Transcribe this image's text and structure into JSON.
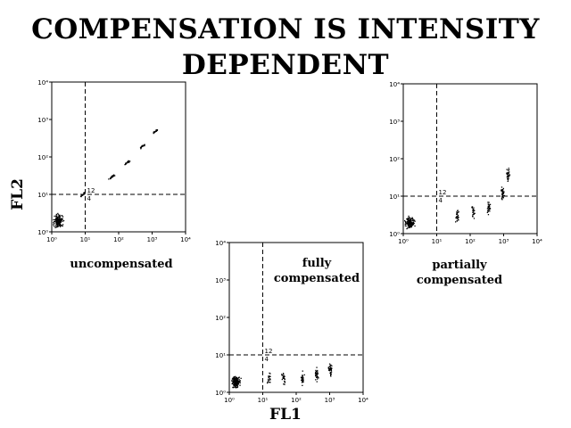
{
  "title": {
    "line1": "COMPENSATION IS INTENSITY",
    "line2": "DEPENDENT"
  },
  "axes": {
    "ylabel": "FL2",
    "xlabel": "FL1"
  },
  "captions": {
    "uncompensated": "uncompensated",
    "fully": "fully compensated",
    "partially": "partially compensated"
  },
  "chart_data": [
    {
      "type": "scatter",
      "caption": "uncompensated",
      "xscale": "log",
      "yscale": "log",
      "xlim": [
        1,
        10000
      ],
      "ylim": [
        1,
        10000
      ],
      "xticks": [
        "10⁰",
        "10¹",
        "10²",
        "10³",
        "10⁴"
      ],
      "yticks": [
        "10⁰",
        "10¹",
        "10²",
        "10³",
        "10⁴"
      ],
      "gate": {
        "x": 10,
        "y": 10
      },
      "quadrant_labels": [
        "12",
        "4"
      ],
      "clusters": [
        {
          "x": 1.5,
          "y": 2,
          "points": 180
        },
        {
          "x": 8,
          "y": 10,
          "points": 20
        },
        {
          "x": 60,
          "y": 30,
          "points": 30
        },
        {
          "x": 180,
          "y": 75,
          "points": 25
        },
        {
          "x": 500,
          "y": 200,
          "points": 20
        },
        {
          "x": 1200,
          "y": 500,
          "points": 15
        }
      ]
    },
    {
      "type": "scatter",
      "caption": "fully compensated",
      "xscale": "log",
      "yscale": "log",
      "xlim": [
        1,
        10000
      ],
      "ylim": [
        1,
        10000
      ],
      "xticks": [
        "10⁰",
        "10¹",
        "10²",
        "10³",
        "10⁴"
      ],
      "yticks": [
        "10⁰",
        "10¹",
        "10²",
        "10³",
        "10⁴"
      ],
      "gate": {
        "x": 10,
        "y": 10
      },
      "quadrant_labels": [
        "12",
        "4"
      ],
      "clusters": [
        {
          "x": 1.5,
          "y": 2,
          "points": 150
        },
        {
          "x": 15,
          "y": 2.5,
          "points": 20
        },
        {
          "x": 40,
          "y": 2.5,
          "points": 25
        },
        {
          "x": 150,
          "y": 2.5,
          "points": 30
        },
        {
          "x": 400,
          "y": 3,
          "points": 30
        },
        {
          "x": 1000,
          "y": 4,
          "points": 40
        }
      ]
    },
    {
      "type": "scatter",
      "caption": "partially compensated",
      "xscale": "log",
      "yscale": "log",
      "xlim": [
        1,
        10000
      ],
      "ylim": [
        1,
        10000
      ],
      "xticks": [
        "10⁰",
        "10¹",
        "10²",
        "10³",
        "10⁴"
      ],
      "yticks": [
        "10⁰",
        "10¹",
        "10²",
        "10³",
        "10⁴"
      ],
      "gate": {
        "x": 10,
        "y": 10
      },
      "quadrant_labels": [
        "12",
        "4"
      ],
      "clusters": [
        {
          "x": 1.5,
          "y": 2,
          "points": 150
        },
        {
          "x": 40,
          "y": 3,
          "points": 25
        },
        {
          "x": 120,
          "y": 4,
          "points": 25
        },
        {
          "x": 350,
          "y": 5,
          "points": 30
        },
        {
          "x": 900,
          "y": 12,
          "points": 35
        },
        {
          "x": 1300,
          "y": 40,
          "points": 30
        }
      ]
    }
  ]
}
